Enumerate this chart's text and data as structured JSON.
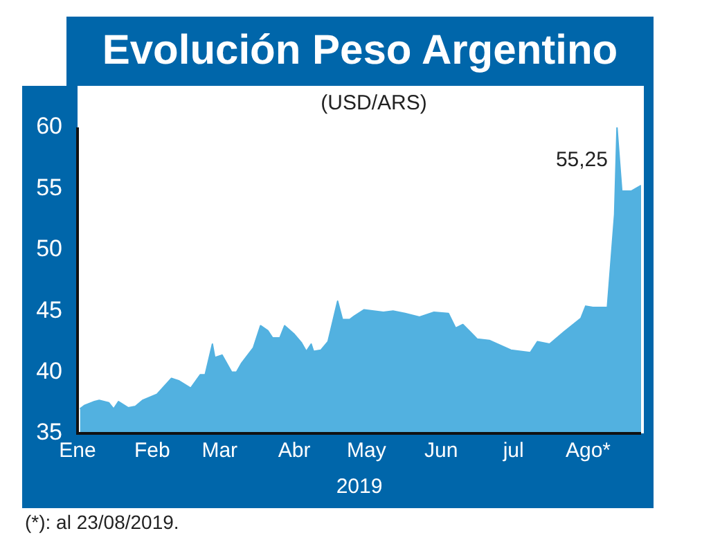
{
  "chart_data": {
    "type": "area",
    "title": "Evolución Peso Argentino",
    "subtitle": "(USD/ARS)",
    "xlabel": "2019",
    "annotations": [
      {
        "text": "55,25",
        "x": "2019-08-23",
        "y": 55.25
      },
      "(*): al 23/08/2019."
    ],
    "xlim": [
      "2019-01-01",
      "2019-08-23"
    ],
    "xticks": [
      {
        "value": "2019-01-01",
        "label": "Ene"
      },
      {
        "value": "2019-02-01",
        "label": "Feb"
      },
      {
        "value": "2019-03-01",
        "label": "Mar"
      },
      {
        "value": "2019-04-01",
        "label": "Abr"
      },
      {
        "value": "2019-05-01",
        "label": "May"
      },
      {
        "value": "2019-06-01",
        "label": "Jun"
      },
      {
        "value": "2019-07-01",
        "label": "jul"
      },
      {
        "value": "2019-08-01",
        "label": "Ago*"
      }
    ],
    "ylim": [
      35,
      60
    ],
    "yticks": [
      35,
      40,
      45,
      50,
      55,
      60
    ],
    "x": [
      "2019-01-02",
      "2019-01-04",
      "2019-01-08",
      "2019-01-10",
      "2019-01-14",
      "2019-01-16",
      "2019-01-18",
      "2019-01-22",
      "2019-01-25",
      "2019-01-28",
      "2019-02-03",
      "2019-02-09",
      "2019-02-12",
      "2019-02-17",
      "2019-02-21",
      "2019-02-23",
      "2019-02-26",
      "2019-02-27",
      "2019-03-02",
      "2019-03-06",
      "2019-03-08",
      "2019-03-10",
      "2019-03-15",
      "2019-03-18",
      "2019-03-21",
      "2019-03-23",
      "2019-03-26",
      "2019-03-28",
      "2019-04-01",
      "2019-04-04",
      "2019-04-06",
      "2019-04-08",
      "2019-04-09",
      "2019-04-12",
      "2019-04-15",
      "2019-04-19",
      "2019-04-21",
      "2019-04-24",
      "2019-04-26",
      "2019-04-30",
      "2019-05-04",
      "2019-05-08",
      "2019-05-12",
      "2019-05-17",
      "2019-05-23",
      "2019-05-29",
      "2019-06-04",
      "2019-06-07",
      "2019-06-10",
      "2019-06-13",
      "2019-06-16",
      "2019-06-21",
      "2019-06-30",
      "2019-07-08",
      "2019-07-11",
      "2019-07-16",
      "2019-07-22",
      "2019-07-29",
      "2019-07-31",
      "2019-08-03",
      "2019-08-09",
      "2019-08-12",
      "2019-08-13",
      "2019-08-15",
      "2019-08-19",
      "2019-08-23"
    ],
    "series": [
      {
        "color": "#52b1e0",
        "values": [
          37.0,
          37.3,
          37.6,
          37.7,
          37.5,
          37.0,
          37.6,
          37.1,
          37.2,
          37.7,
          38.2,
          39.5,
          39.3,
          38.7,
          39.8,
          39.8,
          42.3,
          41.2,
          41.4,
          40.0,
          40.0,
          40.7,
          42.0,
          43.8,
          43.4,
          42.8,
          42.8,
          43.8,
          43.1,
          42.4,
          41.7,
          42.3,
          41.7,
          41.8,
          42.5,
          45.8,
          44.3,
          44.3,
          44.6,
          45.1,
          45.0,
          44.9,
          45.0,
          44.8,
          44.5,
          44.9,
          44.8,
          43.6,
          43.9,
          43.3,
          42.7,
          42.6,
          41.8,
          41.6,
          42.5,
          42.3,
          43.3,
          44.4,
          45.4,
          45.3,
          45.3,
          52.9,
          60.0,
          54.8,
          54.8,
          55.25
        ]
      }
    ]
  }
}
